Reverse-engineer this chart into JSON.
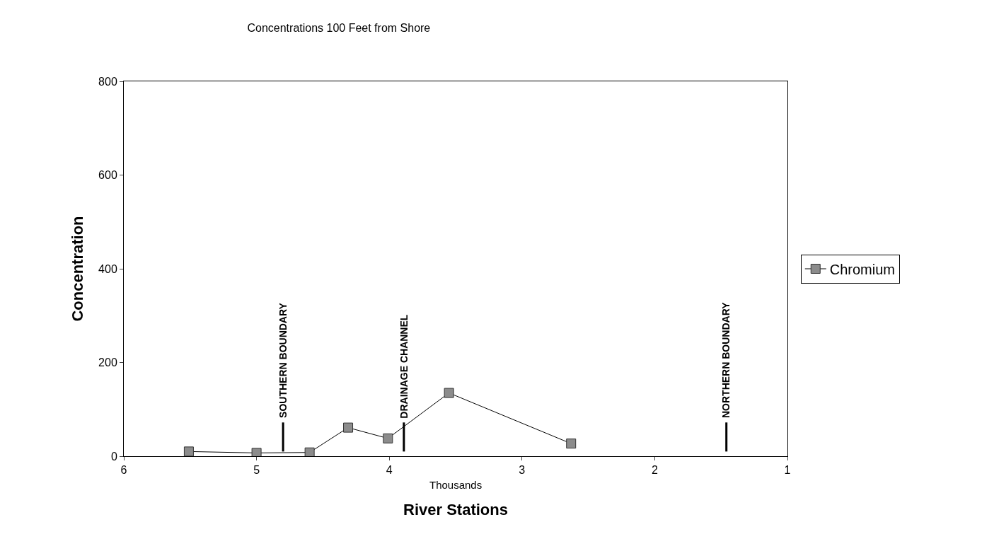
{
  "chart_data": {
    "type": "line",
    "title": "Concentrations 100 Feet from Shore",
    "xlabel": "River Stations",
    "ylabel": "Concentration",
    "annotations": [
      "Thousands"
    ],
    "xlim": [
      6,
      1
    ],
    "xticks": [
      6,
      5,
      4,
      3,
      2,
      1
    ],
    "ylim": [
      0,
      800
    ],
    "yticks": [
      0,
      200,
      400,
      600,
      800
    ],
    "x": [
      5.51,
      5.0,
      4.6,
      4.31,
      4.01,
      3.55,
      2.63
    ],
    "series": [
      {
        "name": "Chromium",
        "color": "#8c8c8c",
        "values": [
          10,
          7,
          8,
          61,
          38,
          135,
          27
        ]
      }
    ],
    "ref_lines": [
      {
        "axis": "x",
        "value": 4.8,
        "label": "SOUTHERN BOUNDARY"
      },
      {
        "axis": "x",
        "value": 3.89,
        "label": "DRAINAGE CHANNEL"
      },
      {
        "axis": "x",
        "value": 1.46,
        "label": "NORTHERN BOUNDARY"
      }
    ],
    "marker": "square",
    "line_style": "solid",
    "legend": "right"
  }
}
